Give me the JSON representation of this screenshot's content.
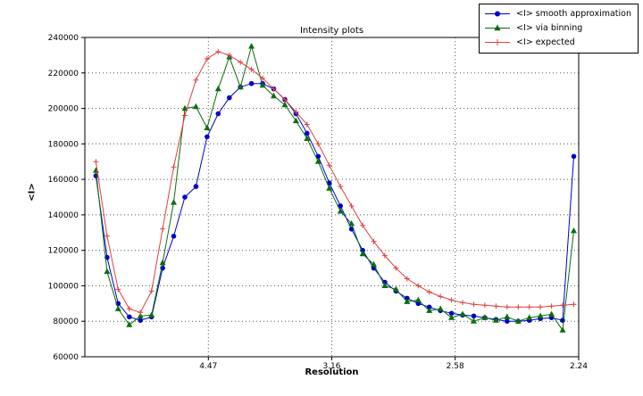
{
  "figure": {
    "title": "Intensity plots",
    "xlabel": "Resolution",
    "ylabel": "<I>"
  },
  "legend": {
    "position": "top-right",
    "entries": [
      {
        "label": "<I> smooth approximation",
        "color": "#0000cc",
        "marker": "circle"
      },
      {
        "label": "<I> via binning",
        "color": "#0c6e0c",
        "marker": "triangle"
      },
      {
        "label": "<I> expected",
        "color": "#e04040",
        "marker": "plus"
      }
    ]
  },
  "chart_data": {
    "type": "line",
    "title": "Intensity plots",
    "xlabel": "Resolution",
    "ylabel": "<I>",
    "x_axis_scale": "linear in 1/d^2; tick labels show resolution d",
    "xlim": [
      0,
      0.2
    ],
    "ylim": [
      60000,
      240000
    ],
    "grid": "dotted",
    "legend_position": "upper right outside plot",
    "yticks": [
      60000,
      80000,
      100000,
      120000,
      140000,
      160000,
      180000,
      200000,
      220000,
      240000
    ],
    "xticks": [
      {
        "value": 0.05,
        "label": "4.47"
      },
      {
        "value": 0.1,
        "label": "3.16"
      },
      {
        "value": 0.15,
        "label": "2.58"
      },
      {
        "value": 0.2,
        "label": "2.24"
      }
    ],
    "x": [
      0.0045,
      0.009,
      0.0135,
      0.018,
      0.0225,
      0.027,
      0.0315,
      0.036,
      0.0405,
      0.045,
      0.0495,
      0.054,
      0.0585,
      0.063,
      0.0675,
      0.072,
      0.0765,
      0.081,
      0.0855,
      0.09,
      0.0945,
      0.099,
      0.1035,
      0.108,
      0.1125,
      0.117,
      0.1215,
      0.126,
      0.1305,
      0.135,
      0.1395,
      0.144,
      0.1485,
      0.153,
      0.1575,
      0.162,
      0.1665,
      0.171,
      0.1755,
      0.18,
      0.1845,
      0.189,
      0.1935,
      0.198
    ],
    "series": [
      {
        "name": "<I> smooth approximation",
        "color": "#0000cc",
        "marker": "circle",
        "values": [
          162000,
          116000,
          90000,
          82500,
          80500,
          82500,
          110000,
          128000,
          150000,
          156000,
          184000,
          197000,
          206000,
          212000,
          214000,
          214000,
          211000,
          205000,
          197000,
          186000,
          173000,
          158000,
          145000,
          132000,
          120000,
          110000,
          102000,
          97000,
          93000,
          90000,
          88000,
          86000,
          84500,
          83500,
          83000,
          82000,
          81000,
          80000,
          80000,
          80500,
          81500,
          82000,
          80500,
          173000
        ]
      },
      {
        "name": "<I> via binning",
        "color": "#0c6e0c",
        "marker": "triangle",
        "values": [
          165000,
          108000,
          87000,
          78000,
          83000,
          83500,
          113000,
          147000,
          200000,
          201000,
          189000,
          211000,
          229000,
          212000,
          235000,
          213000,
          207000,
          202000,
          193000,
          183000,
          170000,
          155000,
          142000,
          135000,
          118000,
          112000,
          100000,
          98000,
          91000,
          92000,
          86000,
          87000,
          82000,
          84000,
          80000,
          82000,
          80500,
          82500,
          80000,
          82000,
          83000,
          84000,
          75000,
          131000
        ]
      },
      {
        "name": "<I> expected",
        "color": "#e04040",
        "marker": "plus",
        "values": [
          170000,
          128000,
          98000,
          87000,
          85000,
          97000,
          132000,
          167000,
          196000,
          216000,
          228000,
          232000,
          230000,
          226000,
          222000,
          217000,
          211000,
          205000,
          198000,
          191000,
          180000,
          168000,
          156000,
          145000,
          134000,
          125000,
          117000,
          110000,
          104000,
          100000,
          96500,
          94000,
          92000,
          90500,
          89500,
          89000,
          88500,
          88000,
          88000,
          88000,
          88000,
          88500,
          89000,
          89500
        ]
      }
    ]
  }
}
